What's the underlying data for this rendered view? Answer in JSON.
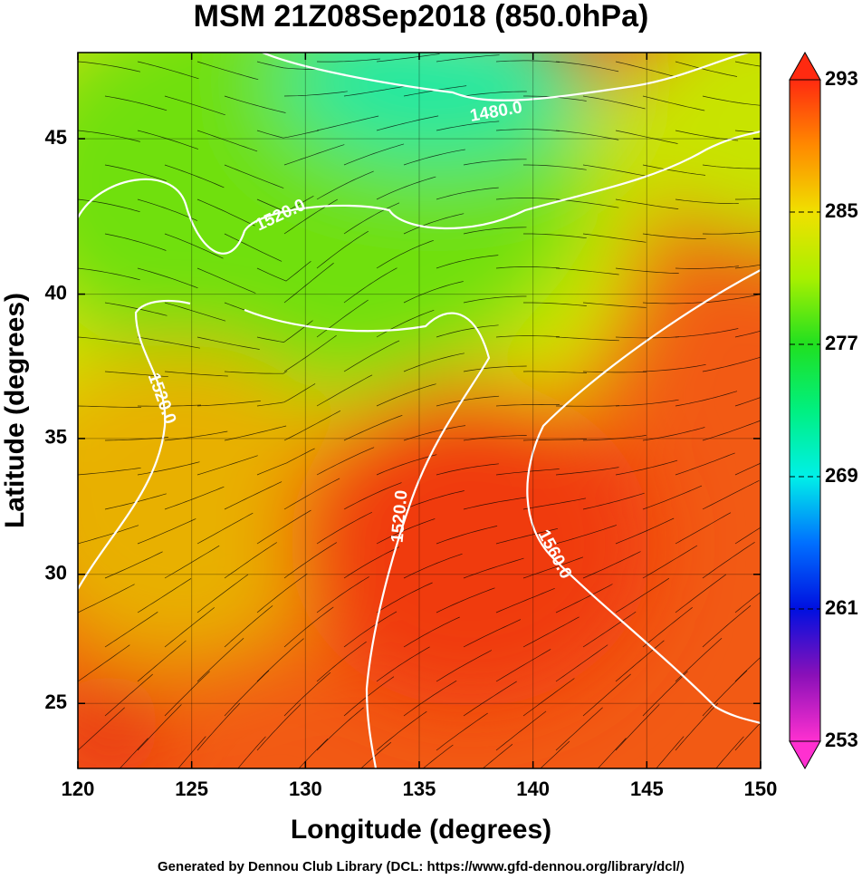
{
  "chart_data": {
    "type": "map",
    "title": "MSM 21Z08Sep2018 (850.0hPa)",
    "x_label": "Longitude (degrees)",
    "y_label": "Latitude  (degrees)",
    "footer": "Generated by Dennou Club Library (DCL: https://www.gfd-dennou.org/library/dcl/)",
    "projection": "mercator",
    "xlim": [
      120,
      150
    ],
    "ylim": [
      22.4,
      47.6
    ],
    "xticks": [
      120,
      125,
      130,
      135,
      140,
      145,
      150
    ],
    "yticks": [
      25,
      30,
      35,
      40,
      45
    ],
    "grid": true,
    "annotations": [
      "1480.0",
      "1520.0",
      "1520.0",
      "1520.0",
      "1560.0"
    ],
    "colorbar": {
      "lim": [
        253,
        293
      ],
      "ticks": [
        253,
        261,
        269,
        277,
        285,
        293
      ],
      "extend": "both",
      "colors": [
        "#ff30d0",
        "#8a10b8",
        "#0010e0",
        "#0070ff",
        "#00f0e8",
        "#00f080",
        "#20e020",
        "#a8f000",
        "#f0e000",
        "#ff8a00",
        "#ff2a10"
      ]
    }
  }
}
